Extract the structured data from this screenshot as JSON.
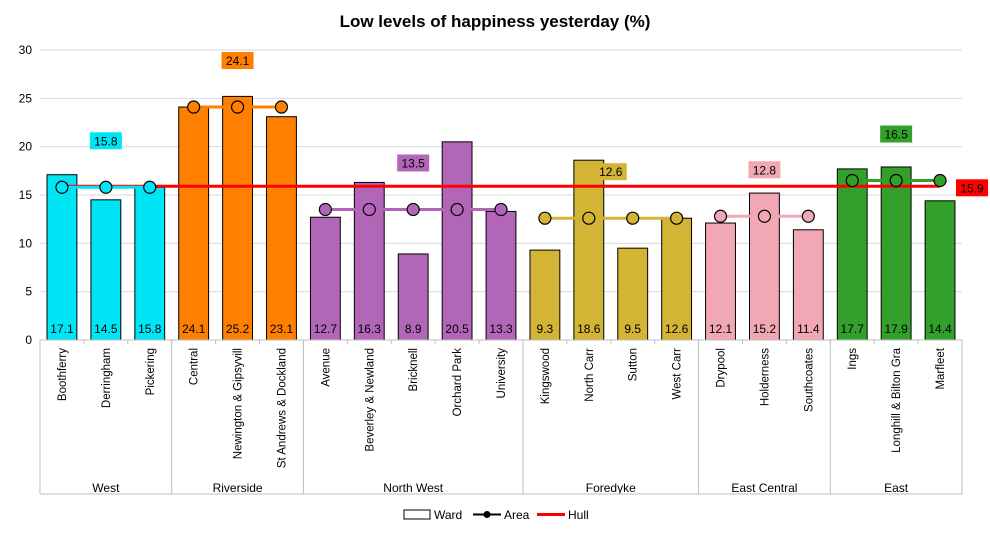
{
  "chart_data": {
    "type": "bar",
    "title": "Low levels of happiness yesterday (%)",
    "ylim": [
      0,
      30
    ],
    "yticks": [
      0,
      5,
      10,
      15,
      20,
      25,
      30
    ],
    "grid": true,
    "legend_position": "bottom-center",
    "legend": {
      "ward": "Ward",
      "area": "Area",
      "hull": "Hull"
    },
    "hull_value": 15.9,
    "hull_label": "15.9",
    "hull_color": "#ff0000",
    "groups": [
      {
        "name": "West",
        "color": "#00e5f5",
        "line_color": "#00e5f5",
        "area_value": 15.8,
        "area_label": "15.8",
        "label_bg": "#00e5f5",
        "wards": [
          {
            "name": "Boothferry",
            "value": 17.1,
            "label": "17.1"
          },
          {
            "name": "Derringham",
            "value": 14.5,
            "label": "14.5"
          },
          {
            "name": "Pickering",
            "value": 15.8,
            "label": "15.8"
          }
        ]
      },
      {
        "name": "Riverside",
        "color": "#ff8000",
        "line_color": "#ff8000",
        "area_value": 24.1,
        "area_label": "24.1",
        "label_bg": "#ff8000",
        "wards": [
          {
            "name": "Central",
            "value": 24.1,
            "label": "24.1"
          },
          {
            "name": "Newington & Gipsyvill",
            "value": 25.2,
            "label": "25.2"
          },
          {
            "name": "St Andrews & Dockland",
            "value": 23.1,
            "label": "23.1"
          }
        ]
      },
      {
        "name": "North West",
        "color": "#b266b8",
        "line_color": "#b266b8",
        "area_value": 13.5,
        "area_label": "13.5",
        "label_bg": "#b266b8",
        "wards": [
          {
            "name": "Avenue",
            "value": 12.7,
            "label": "12.7"
          },
          {
            "name": "Beverley & Newland",
            "value": 16.3,
            "label": "16.3"
          },
          {
            "name": "Bricknell",
            "value": 8.9,
            "label": "8.9"
          },
          {
            "name": "Orchard Park",
            "value": 20.5,
            "label": "20.5"
          },
          {
            "name": "University",
            "value": 13.3,
            "label": "13.3"
          }
        ]
      },
      {
        "name": "Foredyke",
        "color": "#d4b435",
        "line_color": "#d4b435",
        "area_value": 12.6,
        "area_label": "12.6",
        "label_bg": "#d4b435",
        "wards": [
          {
            "name": "Kingswood",
            "value": 9.3,
            "label": "9.3"
          },
          {
            "name": "North Carr",
            "value": 18.6,
            "label": "18.6"
          },
          {
            "name": "Sutton",
            "value": 9.5,
            "label": "9.5"
          },
          {
            "name": "West Carr",
            "value": 12.6,
            "label": "12.6"
          }
        ]
      },
      {
        "name": "East Central",
        "color": "#f2a8b4",
        "line_color": "#f2a8b4",
        "area_value": 12.8,
        "area_label": "12.8",
        "label_bg": "#f2a8b4",
        "wards": [
          {
            "name": "Drypool",
            "value": 12.1,
            "label": "12.1"
          },
          {
            "name": "Holderness",
            "value": 15.2,
            "label": "15.2"
          },
          {
            "name": "Southcoates",
            "value": 11.4,
            "label": "11.4"
          }
        ]
      },
      {
        "name": "East",
        "color": "#33a02c",
        "line_color": "#33a02c",
        "area_value": 16.5,
        "area_label": "16.5",
        "label_bg": "#33a02c",
        "wards": [
          {
            "name": "Ings",
            "value": 17.7,
            "label": "17.7"
          },
          {
            "name": "Longhill & Bilton Gra",
            "value": 17.9,
            "label": "17.9"
          },
          {
            "name": "Marfleet",
            "value": 14.4,
            "label": "14.4"
          }
        ]
      }
    ]
  }
}
